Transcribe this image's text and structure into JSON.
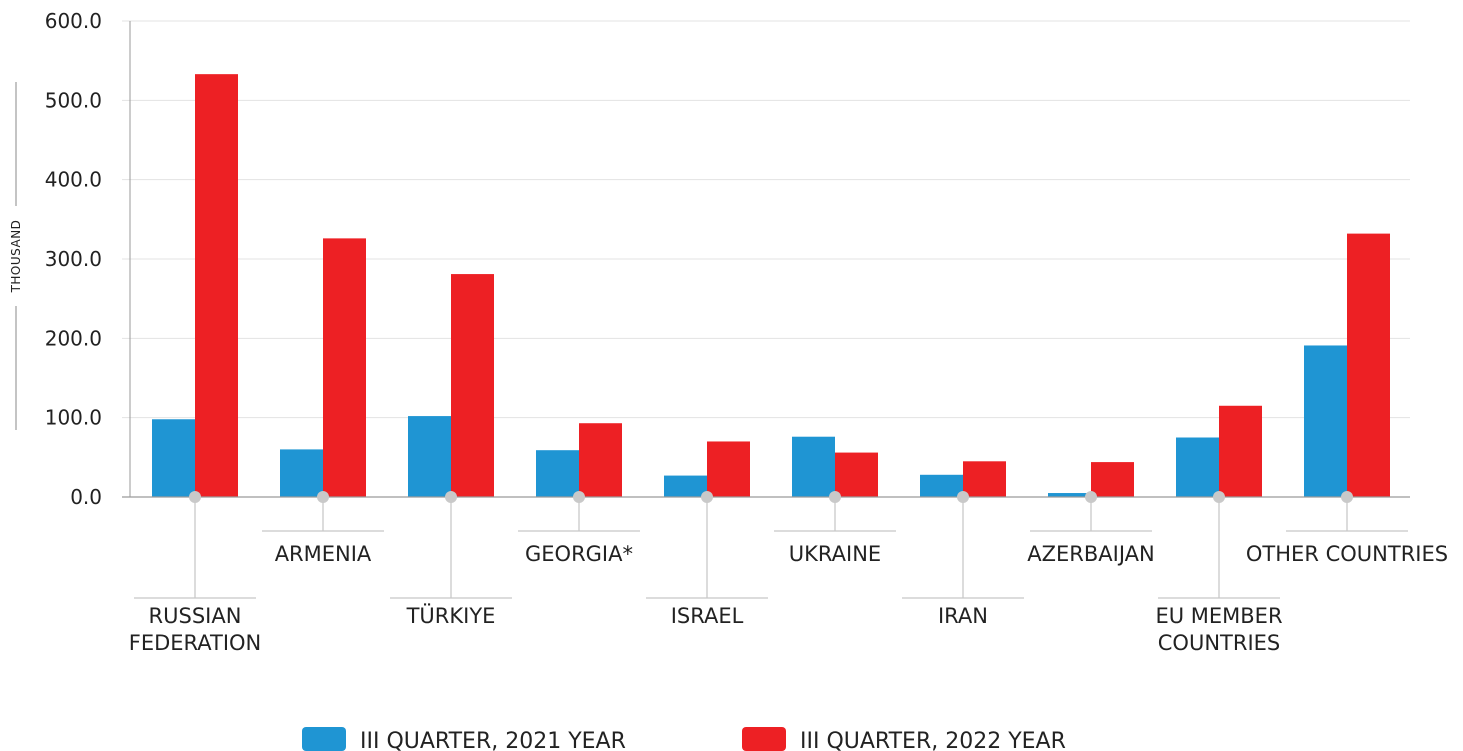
{
  "chart_data": {
    "type": "bar",
    "title": "",
    "xlabel": "",
    "ylabel": "THOUSAND",
    "ylim": [
      0,
      600
    ],
    "yticks": [
      "0.0",
      "100.0",
      "200.0",
      "300.0",
      "400.0",
      "500.0",
      "600.0"
    ],
    "grid": true,
    "legend_position": "bottom",
    "categories": [
      [
        "RUSSIAN",
        "FEDERATION"
      ],
      [
        "ARMENIA"
      ],
      [
        "TÜRKIYE"
      ],
      [
        "GEORGIA*"
      ],
      [
        "ISRAEL"
      ],
      [
        "UKRAINE"
      ],
      [
        "IRAN"
      ],
      [
        "AZERBAIJAN"
      ],
      [
        "EU MEMBER",
        "COUNTRIES"
      ],
      [
        "OTHER COUNTRIES"
      ]
    ],
    "series": [
      {
        "name": "III QUARTER, 2021 YEAR",
        "color": "#1f95d3",
        "values": [
          98,
          60,
          102,
          59,
          27,
          76,
          28,
          5,
          75,
          191
        ]
      },
      {
        "name": "III QUARTER, 2022 YEAR",
        "color": "#ed2024",
        "values": [
          533,
          326,
          281,
          93,
          70,
          56,
          45,
          44,
          115,
          332
        ]
      }
    ]
  }
}
